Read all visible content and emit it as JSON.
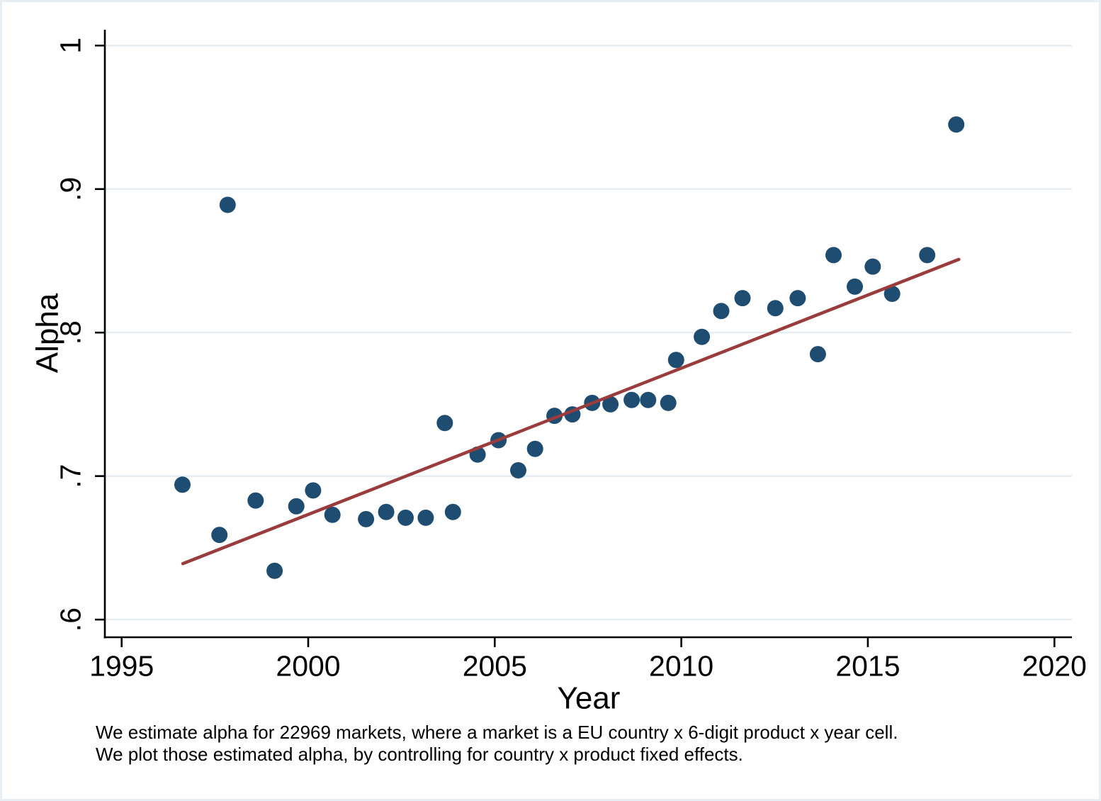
{
  "figure": {
    "background": "#ffffff",
    "frame_color": "#e8eef2"
  },
  "chart_data": {
    "type": "scatter",
    "title": "",
    "xlabel": "Year",
    "ylabel": "Alpha",
    "xlim": [
      1994.55,
      2020.47
    ],
    "ylim": [
      0.5877,
      1.011
    ],
    "grid": "horizontal",
    "grid_color": "#e6eef3",
    "axis_color": "#000000",
    "x_ticks": [
      {
        "value": 1995,
        "label": "1995"
      },
      {
        "value": 2000,
        "label": "2000"
      },
      {
        "value": 2005,
        "label": "2005"
      },
      {
        "value": 2010,
        "label": "2010"
      },
      {
        "value": 2015,
        "label": "2015"
      },
      {
        "value": 2020,
        "label": "2020"
      }
    ],
    "y_ticks": [
      {
        "value": 0.6,
        "label": ".6"
      },
      {
        "value": 0.7,
        "label": ".7"
      },
      {
        "value": 0.8,
        "label": ".8"
      },
      {
        "value": 0.9,
        "label": ".9"
      },
      {
        "value": 1.0,
        "label": "1"
      }
    ],
    "series": [
      {
        "name": "estimated-alpha",
        "type": "scatter",
        "marker_color": "#1e4d71",
        "marker_radius": 11.5,
        "points": [
          [
            1996.63,
            0.694
          ],
          [
            1997.62,
            0.659
          ],
          [
            1997.84,
            0.889
          ],
          [
            1998.59,
            0.683
          ],
          [
            1999.1,
            0.634
          ],
          [
            1999.68,
            0.679
          ],
          [
            2000.13,
            0.69
          ],
          [
            2000.65,
            0.673
          ],
          [
            2001.55,
            0.67
          ],
          [
            2002.09,
            0.675
          ],
          [
            2002.61,
            0.671
          ],
          [
            2003.15,
            0.671
          ],
          [
            2003.66,
            0.737
          ],
          [
            2003.88,
            0.675
          ],
          [
            2004.54,
            0.715
          ],
          [
            2005.1,
            0.725
          ],
          [
            2005.63,
            0.704
          ],
          [
            2006.08,
            0.719
          ],
          [
            2006.6,
            0.742
          ],
          [
            2007.08,
            0.743
          ],
          [
            2007.61,
            0.751
          ],
          [
            2008.1,
            0.75
          ],
          [
            2008.67,
            0.753
          ],
          [
            2009.11,
            0.753
          ],
          [
            2009.65,
            0.751
          ],
          [
            2009.86,
            0.781
          ],
          [
            2010.55,
            0.797
          ],
          [
            2011.07,
            0.815
          ],
          [
            2011.64,
            0.824
          ],
          [
            2012.52,
            0.817
          ],
          [
            2013.12,
            0.824
          ],
          [
            2013.66,
            0.785
          ],
          [
            2014.08,
            0.854
          ],
          [
            2014.65,
            0.832
          ],
          [
            2015.13,
            0.846
          ],
          [
            2015.65,
            0.827
          ],
          [
            2016.59,
            0.854
          ],
          [
            2017.37,
            0.945
          ]
        ]
      },
      {
        "name": "fitted-line",
        "type": "line",
        "line_color": "#9a3b3c",
        "line_width": 4.5,
        "points": [
          [
            1996.64,
            0.639
          ],
          [
            2017.44,
            0.851
          ]
        ]
      }
    ],
    "notes": [
      "We estimate alpha for 22969 markets, where a market is a EU country x 6-digit product x year cell.",
      "We plot those estimated alpha, by controlling for country x product fixed effects."
    ]
  }
}
